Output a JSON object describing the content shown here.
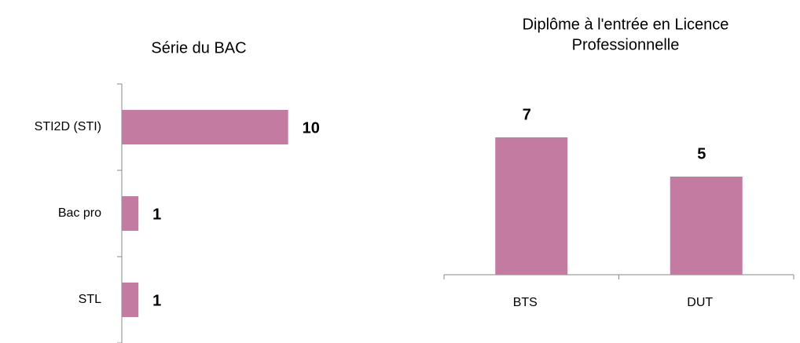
{
  "chart_data": [
    {
      "type": "bar",
      "orientation": "horizontal",
      "title": [
        "Série du BAC"
      ],
      "categories": [
        "STI2D (STI)",
        "Bac pro",
        "STL"
      ],
      "values": [
        10,
        1,
        1
      ],
      "color": "#c47ba1",
      "xlim": [
        0,
        12
      ]
    },
    {
      "type": "bar",
      "orientation": "vertical",
      "title": [
        "Diplôme à l'entrée en Licence",
        "Professionnelle"
      ],
      "categories": [
        "BTS",
        "DUT"
      ],
      "values": [
        7,
        5
      ],
      "color": "#c47ba1",
      "ylim": [
        0,
        8
      ]
    }
  ]
}
